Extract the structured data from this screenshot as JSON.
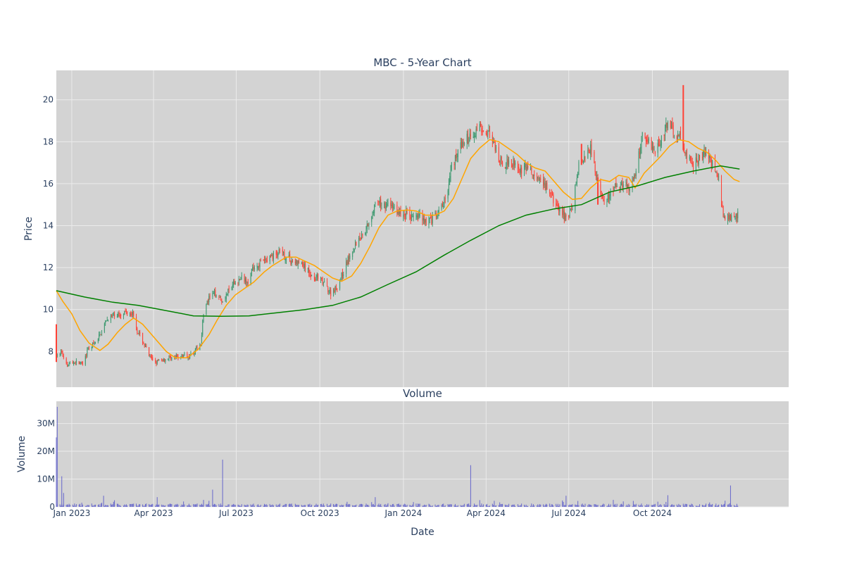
{
  "chart_data": {
    "type": "candlestick",
    "title": "MBC - 5-Year Chart",
    "subtitle": "Volume",
    "ylabel": "Price",
    "volume_ylabel": "Volume",
    "xlabel": "Date",
    "colors": {
      "increasing": "#3d9970",
      "decreasing": "#ff4136",
      "ma_short": "#ffa500",
      "ma_long": "#008000",
      "volume": "#6666cc",
      "plot_bg": "#d3d3d3",
      "grid": "#ebebeb"
    },
    "grid": true,
    "x_range": [
      "2022-12-15",
      "2025-02-28"
    ],
    "x_ticks": [
      {
        "date": "2023-01-01",
        "label": "Jan 2023"
      },
      {
        "date": "2023-04-01",
        "label": "Apr 2023"
      },
      {
        "date": "2023-07-01",
        "label": "Jul 2023"
      },
      {
        "date": "2023-10-01",
        "label": "Oct 2023"
      },
      {
        "date": "2024-01-01",
        "label": "Jan 2024"
      },
      {
        "date": "2024-04-01",
        "label": "Apr 2024"
      },
      {
        "date": "2024-07-01",
        "label": "Jul 2024"
      },
      {
        "date": "2024-10-01",
        "label": "Oct 2024"
      }
    ],
    "price_ylim": [
      6.3,
      21.4
    ],
    "price_ticks": [
      {
        "value": 8,
        "label": "8"
      },
      {
        "value": 10,
        "label": "10"
      },
      {
        "value": 12,
        "label": "12"
      },
      {
        "value": 14,
        "label": "14"
      },
      {
        "value": 16,
        "label": "16"
      },
      {
        "value": 18,
        "label": "18"
      },
      {
        "value": 20,
        "label": "20"
      }
    ],
    "volume_ylim": [
      0,
      38000000
    ],
    "volume_ticks": [
      {
        "value": 0,
        "label": "0"
      },
      {
        "value": 10000000,
        "label": "10M"
      },
      {
        "value": 20000000,
        "label": "20M"
      },
      {
        "value": 30000000,
        "label": "30M"
      }
    ],
    "price_path": [
      [
        "2022-12-15",
        7.7
      ],
      [
        "2022-12-20",
        8.0
      ],
      [
        "2022-12-27",
        7.4
      ],
      [
        "2023-01-05",
        7.5
      ],
      [
        "2023-01-13",
        7.4
      ],
      [
        "2023-01-20",
        8.2
      ],
      [
        "2023-01-27",
        8.4
      ],
      [
        "2023-02-03",
        9.0
      ],
      [
        "2023-02-10",
        9.6
      ],
      [
        "2023-02-17",
        9.7
      ],
      [
        "2023-02-24",
        9.8
      ],
      [
        "2023-03-03",
        9.9
      ],
      [
        "2023-03-10",
        9.8
      ],
      [
        "2023-03-14",
        9.0
      ],
      [
        "2023-03-21",
        8.4
      ],
      [
        "2023-03-28",
        7.7
      ],
      [
        "2023-04-04",
        7.5
      ],
      [
        "2023-04-11",
        7.6
      ],
      [
        "2023-04-18",
        7.7
      ],
      [
        "2023-04-25",
        7.7
      ],
      [
        "2023-05-02",
        7.8
      ],
      [
        "2023-05-09",
        7.8
      ],
      [
        "2023-05-16",
        8.0
      ],
      [
        "2023-05-23",
        8.4
      ],
      [
        "2023-05-26",
        9.9
      ],
      [
        "2023-06-02",
        10.6
      ],
      [
        "2023-06-09",
        10.8
      ],
      [
        "2023-06-16",
        10.4
      ],
      [
        "2023-06-23",
        10.9
      ],
      [
        "2023-06-30",
        11.3
      ],
      [
        "2023-07-07",
        11.5
      ],
      [
        "2023-07-14",
        11.4
      ],
      [
        "2023-07-21",
        12.1
      ],
      [
        "2023-07-28",
        12.2
      ],
      [
        "2023-08-04",
        12.4
      ],
      [
        "2023-08-11",
        12.6
      ],
      [
        "2023-08-18",
        12.7
      ],
      [
        "2023-08-25",
        12.5
      ],
      [
        "2023-09-01",
        12.3
      ],
      [
        "2023-09-08",
        12.2
      ],
      [
        "2023-09-15",
        12.0
      ],
      [
        "2023-09-22",
        11.6
      ],
      [
        "2023-09-29",
        11.5
      ],
      [
        "2023-10-06",
        11.2
      ],
      [
        "2023-10-13",
        10.8
      ],
      [
        "2023-10-20",
        11.1
      ],
      [
        "2023-10-27",
        11.8
      ],
      [
        "2023-11-03",
        12.6
      ],
      [
        "2023-11-10",
        13.2
      ],
      [
        "2023-11-17",
        13.6
      ],
      [
        "2023-11-24",
        14.2
      ],
      [
        "2023-12-01",
        15.0
      ],
      [
        "2023-12-08",
        15.0
      ],
      [
        "2023-12-15",
        15.0
      ],
      [
        "2023-12-22",
        14.9
      ],
      [
        "2023-12-29",
        14.5
      ],
      [
        "2024-01-05",
        14.6
      ],
      [
        "2024-01-12",
        14.4
      ],
      [
        "2024-01-19",
        14.5
      ],
      [
        "2024-01-26",
        14.2
      ],
      [
        "2024-02-02",
        14.3
      ],
      [
        "2024-02-09",
        14.6
      ],
      [
        "2024-02-16",
        15.2
      ],
      [
        "2024-02-23",
        16.8
      ],
      [
        "2024-03-01",
        17.6
      ],
      [
        "2024-03-08",
        18.0
      ],
      [
        "2024-03-15",
        18.3
      ],
      [
        "2024-03-22",
        18.6
      ],
      [
        "2024-03-29",
        18.7
      ],
      [
        "2024-04-05",
        18.3
      ],
      [
        "2024-04-12",
        17.5
      ],
      [
        "2024-04-19",
        16.8
      ],
      [
        "2024-04-26",
        17.1
      ],
      [
        "2024-05-03",
        17.0
      ],
      [
        "2024-05-10",
        16.6
      ],
      [
        "2024-05-17",
        16.8
      ],
      [
        "2024-05-24",
        16.3
      ],
      [
        "2024-05-31",
        16.0
      ],
      [
        "2024-06-07",
        15.8
      ],
      [
        "2024-06-14",
        15.2
      ],
      [
        "2024-06-21",
        14.7
      ],
      [
        "2024-06-28",
        14.4
      ],
      [
        "2024-07-05",
        14.9
      ],
      [
        "2024-07-12",
        16.9
      ],
      [
        "2024-07-19",
        17.4
      ],
      [
        "2024-07-26",
        17.8
      ],
      [
        "2024-08-02",
        16.0
      ],
      [
        "2024-08-09",
        15.0
      ],
      [
        "2024-08-16",
        15.5
      ],
      [
        "2024-08-23",
        15.9
      ],
      [
        "2024-08-30",
        16.0
      ],
      [
        "2024-09-06",
        15.8
      ],
      [
        "2024-09-13",
        16.5
      ],
      [
        "2024-09-20",
        18.4
      ],
      [
        "2024-09-27",
        18.0
      ],
      [
        "2024-10-04",
        17.6
      ],
      [
        "2024-10-11",
        18.2
      ],
      [
        "2024-10-18",
        18.8
      ],
      [
        "2024-10-25",
        18.5
      ],
      [
        "2024-11-01",
        18.1
      ],
      [
        "2024-11-08",
        17.4
      ],
      [
        "2024-11-15",
        16.8
      ],
      [
        "2024-11-22",
        17.3
      ],
      [
        "2024-11-29",
        17.5
      ],
      [
        "2024-12-06",
        16.9
      ],
      [
        "2024-12-13",
        16.2
      ],
      [
        "2024-12-17",
        14.8
      ],
      [
        "2024-12-20",
        14.3
      ],
      [
        "2024-12-27",
        14.4
      ],
      [
        "2025-01-03",
        14.5
      ]
    ],
    "spikes": [
      {
        "date": "2022-12-15",
        "high": 9.3,
        "low": 7.5
      },
      {
        "date": "2024-11-04",
        "high": 20.7,
        "low": 17.6
      },
      {
        "date": "2024-07-15",
        "high": 17.9,
        "low": 16.9
      },
      {
        "date": "2024-08-02",
        "high": 16.3,
        "low": 15.0
      }
    ],
    "ma_short": [
      [
        "2022-12-15",
        10.9
      ],
      [
        "2022-12-22",
        10.4
      ],
      [
        "2023-01-01",
        9.8
      ],
      [
        "2023-01-10",
        9.0
      ],
      [
        "2023-01-20",
        8.4
      ],
      [
        "2023-02-01",
        8.05
      ],
      [
        "2023-02-10",
        8.35
      ],
      [
        "2023-02-20",
        8.9
      ],
      [
        "2023-03-01",
        9.3
      ],
      [
        "2023-03-10",
        9.6
      ],
      [
        "2023-03-20",
        9.3
      ],
      [
        "2023-04-01",
        8.7
      ],
      [
        "2023-04-15",
        8.0
      ],
      [
        "2023-04-25",
        7.7
      ],
      [
        "2023-05-08",
        7.7
      ],
      [
        "2023-05-20",
        8.1
      ],
      [
        "2023-06-01",
        8.8
      ],
      [
        "2023-06-10",
        9.5
      ],
      [
        "2023-06-20",
        10.2
      ],
      [
        "2023-06-30",
        10.7
      ],
      [
        "2023-07-10",
        11.0
      ],
      [
        "2023-07-20",
        11.3
      ],
      [
        "2023-08-01",
        11.8
      ],
      [
        "2023-08-10",
        12.1
      ],
      [
        "2023-08-25",
        12.5
      ],
      [
        "2023-09-05",
        12.5
      ],
      [
        "2023-09-15",
        12.3
      ],
      [
        "2023-09-25",
        12.1
      ],
      [
        "2023-10-05",
        11.8
      ],
      [
        "2023-10-15",
        11.5
      ],
      [
        "2023-10-25",
        11.35
      ],
      [
        "2023-11-05",
        11.6
      ],
      [
        "2023-11-15",
        12.2
      ],
      [
        "2023-11-25",
        13.0
      ],
      [
        "2023-12-05",
        13.9
      ],
      [
        "2023-12-15",
        14.5
      ],
      [
        "2023-12-25",
        14.7
      ],
      [
        "2024-01-05",
        14.75
      ],
      [
        "2024-01-15",
        14.7
      ],
      [
        "2024-01-25",
        14.5
      ],
      [
        "2024-02-05",
        14.5
      ],
      [
        "2024-02-15",
        14.7
      ],
      [
        "2024-02-25",
        15.3
      ],
      [
        "2024-03-05",
        16.2
      ],
      [
        "2024-03-15",
        17.2
      ],
      [
        "2024-03-25",
        17.7
      ],
      [
        "2024-04-05",
        18.1
      ],
      [
        "2024-04-15",
        18.0
      ],
      [
        "2024-04-25",
        17.7
      ],
      [
        "2024-05-05",
        17.4
      ],
      [
        "2024-05-15",
        17.0
      ],
      [
        "2024-05-25",
        16.75
      ],
      [
        "2024-06-05",
        16.6
      ],
      [
        "2024-06-15",
        16.1
      ],
      [
        "2024-06-25",
        15.6
      ],
      [
        "2024-07-05",
        15.25
      ],
      [
        "2024-07-15",
        15.3
      ],
      [
        "2024-07-25",
        15.8
      ],
      [
        "2024-08-05",
        16.2
      ],
      [
        "2024-08-15",
        16.1
      ],
      [
        "2024-08-25",
        16.4
      ],
      [
        "2024-09-05",
        16.3
      ],
      [
        "2024-09-12",
        15.8
      ],
      [
        "2024-09-22",
        16.5
      ],
      [
        "2024-10-01",
        16.9
      ],
      [
        "2024-10-10",
        17.3
      ],
      [
        "2024-10-20",
        17.8
      ],
      [
        "2024-10-30",
        18.1
      ],
      [
        "2024-11-10",
        18.0
      ],
      [
        "2024-11-20",
        17.7
      ],
      [
        "2024-11-30",
        17.5
      ],
      [
        "2024-12-10",
        17.1
      ],
      [
        "2024-12-20",
        16.6
      ],
      [
        "2024-12-30",
        16.2
      ],
      [
        "2025-01-05",
        16.1
      ]
    ],
    "ma_long": [
      [
        "2022-12-15",
        10.9
      ],
      [
        "2023-01-15",
        10.6
      ],
      [
        "2023-02-15",
        10.35
      ],
      [
        "2023-03-15",
        10.2
      ],
      [
        "2023-04-15",
        9.95
      ],
      [
        "2023-05-15",
        9.7
      ],
      [
        "2023-06-15",
        9.68
      ],
      [
        "2023-07-15",
        9.7
      ],
      [
        "2023-08-15",
        9.85
      ],
      [
        "2023-09-15",
        10.0
      ],
      [
        "2023-10-15",
        10.2
      ],
      [
        "2023-11-15",
        10.6
      ],
      [
        "2023-12-15",
        11.2
      ],
      [
        "2024-01-15",
        11.8
      ],
      [
        "2024-02-15",
        12.6
      ],
      [
        "2024-03-15",
        13.3
      ],
      [
        "2024-04-15",
        14.0
      ],
      [
        "2024-05-15",
        14.5
      ],
      [
        "2024-06-15",
        14.8
      ],
      [
        "2024-07-15",
        15.0
      ],
      [
        "2024-08-15",
        15.6
      ],
      [
        "2024-09-15",
        15.9
      ],
      [
        "2024-10-15",
        16.3
      ],
      [
        "2024-11-15",
        16.6
      ],
      [
        "2024-12-15",
        16.85
      ],
      [
        "2025-01-05",
        16.7
      ]
    ],
    "volume_spikes": [
      [
        "2022-12-15",
        25000000
      ],
      [
        "2022-12-16",
        36000000
      ],
      [
        "2022-12-21",
        11000000
      ],
      [
        "2022-12-23",
        5000000
      ],
      [
        "2023-06-05",
        6200000
      ],
      [
        "2023-06-16",
        17000000
      ],
      [
        "2023-12-01",
        3500000
      ],
      [
        "2024-03-15",
        15000000
      ],
      [
        "2024-06-28",
        4000000
      ],
      [
        "2024-10-18",
        4200000
      ],
      [
        "2024-12-26",
        7700000
      ],
      [
        "2023-02-05",
        4000000
      ],
      [
        "2023-04-05",
        3500000
      ],
      [
        "2023-05-26",
        2500000
      ]
    ]
  }
}
